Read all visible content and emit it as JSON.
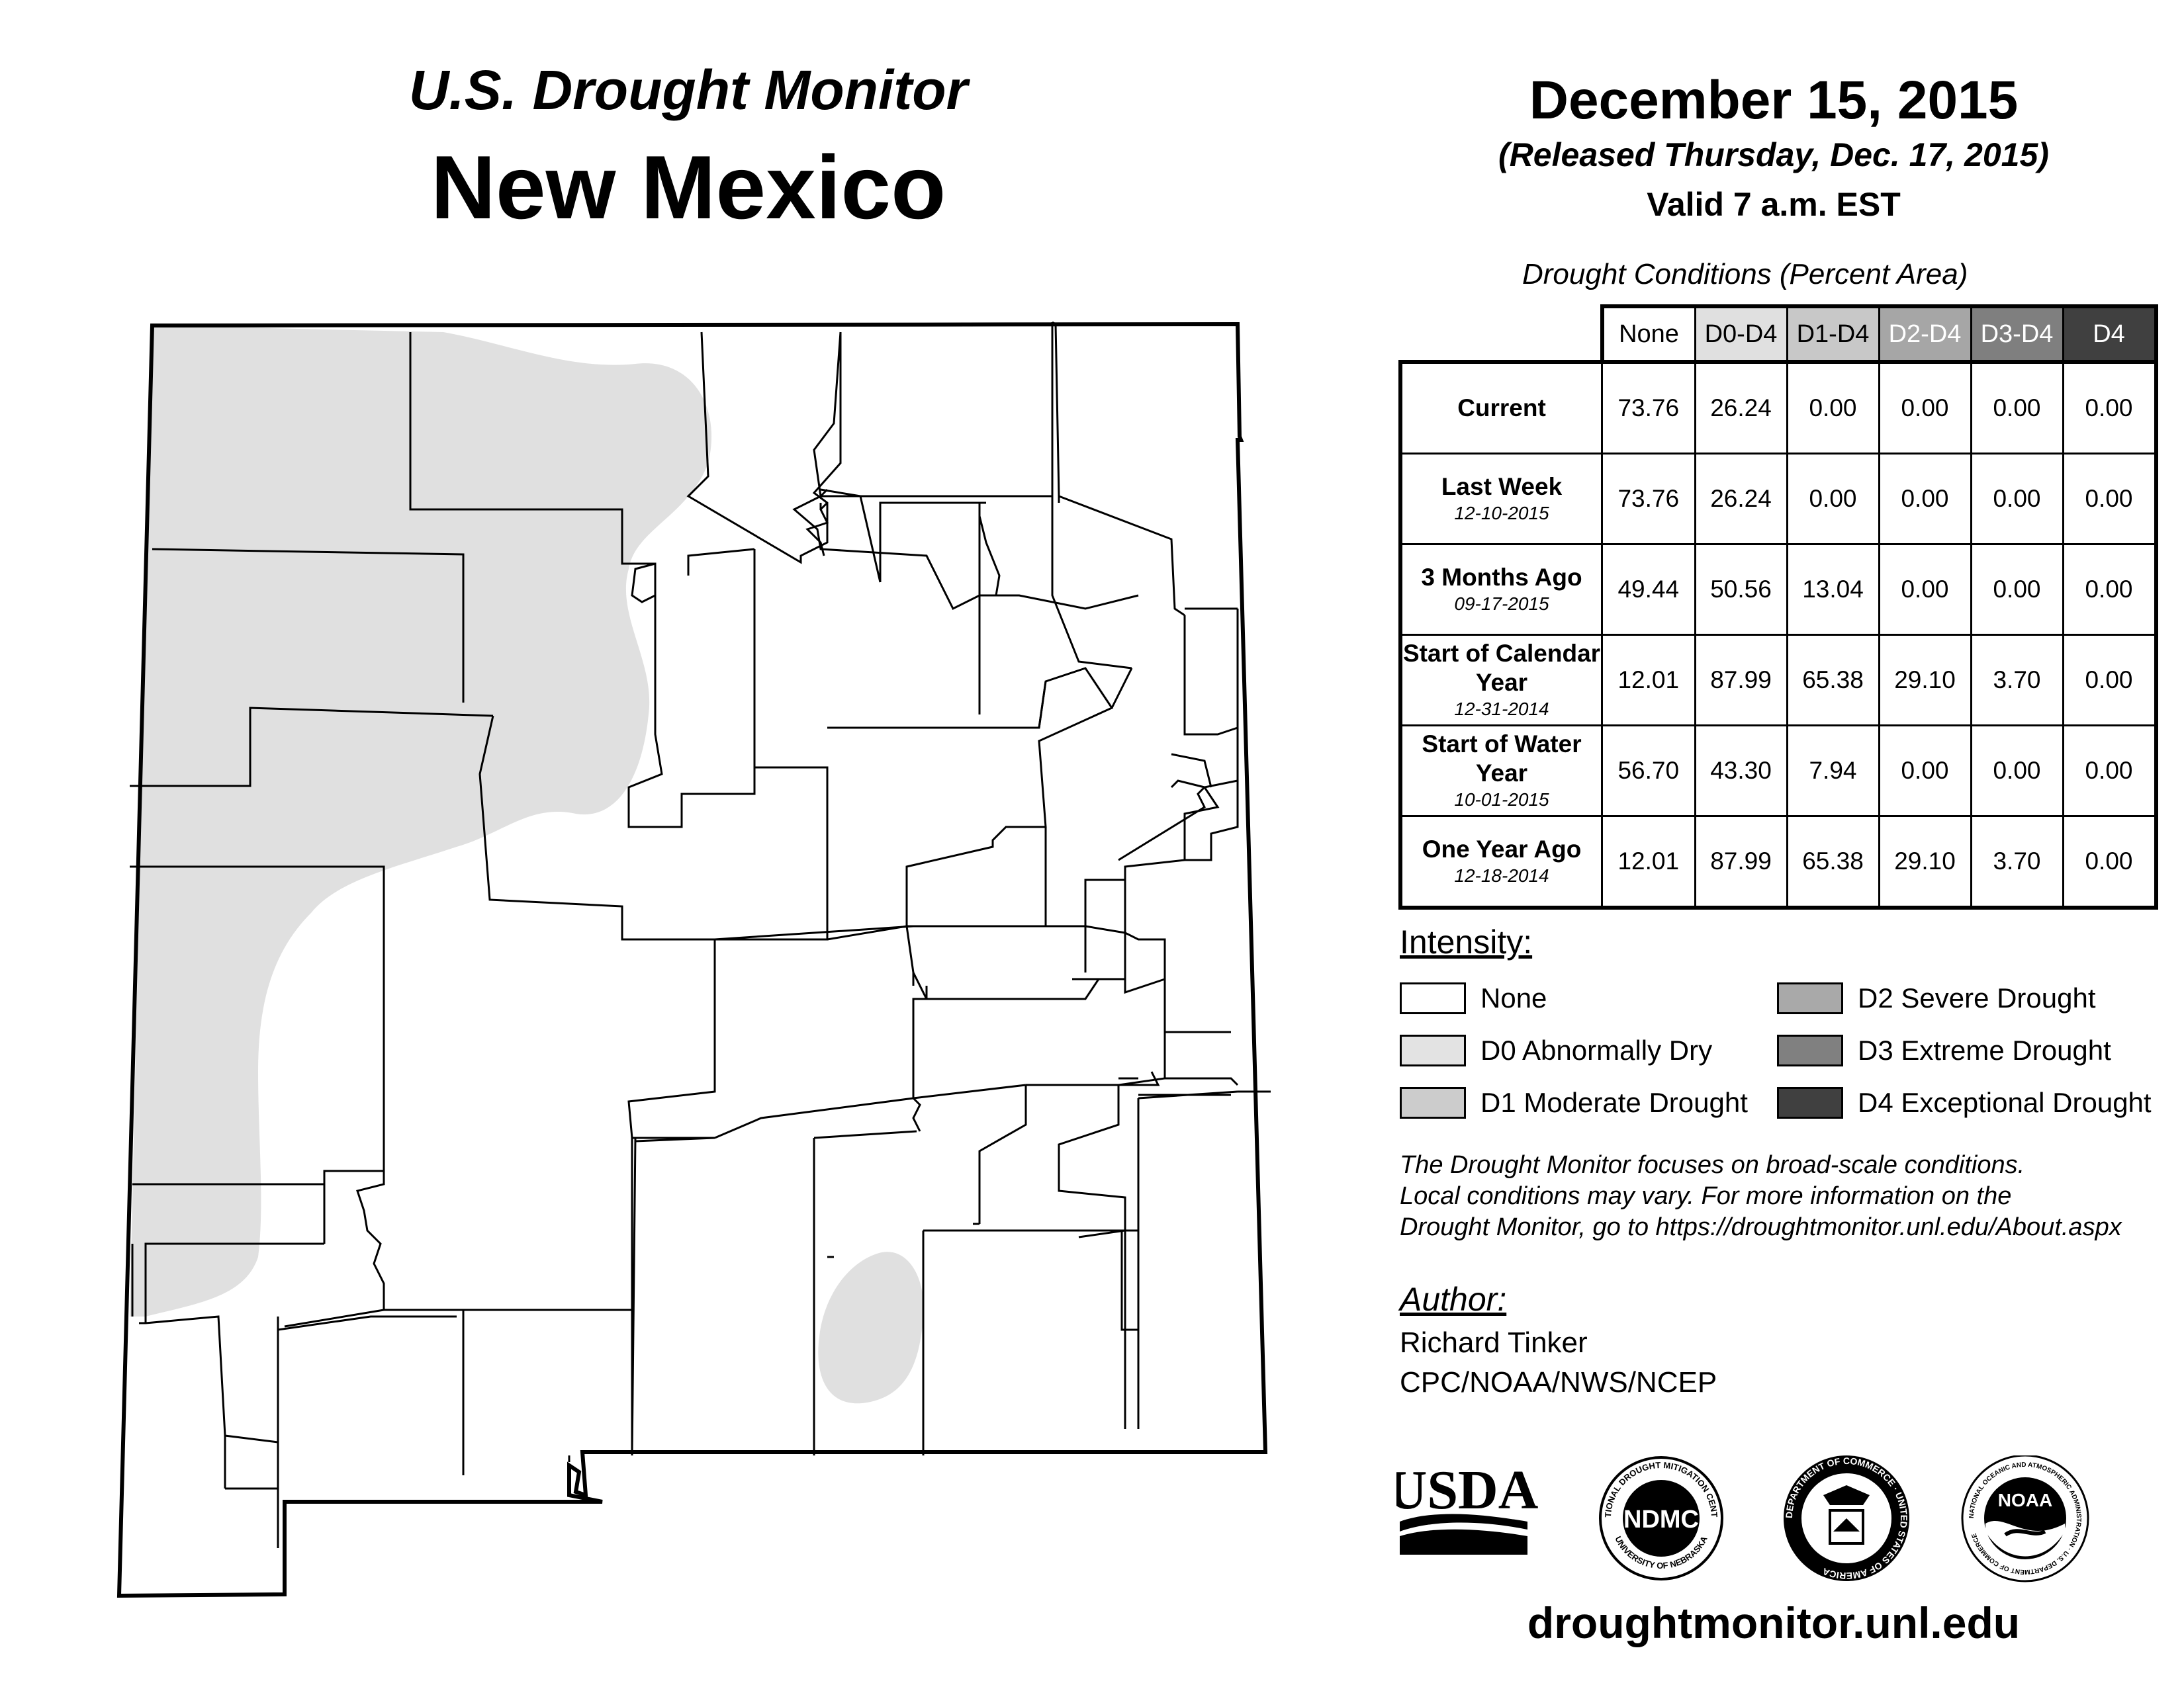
{
  "header": {
    "subtitle": "U.S. Drought Monitor",
    "state": "New Mexico",
    "date": "December 15, 2015",
    "released": "(Released Thursday, Dec. 17, 2015)",
    "valid": "Valid 7 a.m. EST"
  },
  "table": {
    "caption": "Drought Conditions (Percent Area)",
    "columns": [
      "None",
      "D0-D4",
      "D1-D4",
      "D2-D4",
      "D3-D4",
      "D4"
    ],
    "column_colors": [
      "#ffffff",
      "#e0e0e0",
      "#c8c8c8",
      "#a6a6a6",
      "#7f7f7f",
      "#404040"
    ],
    "rows": [
      {
        "label": "Current",
        "date": "",
        "values": [
          "73.76",
          "26.24",
          "0.00",
          "0.00",
          "0.00",
          "0.00"
        ]
      },
      {
        "label": "Last Week",
        "date": "12-10-2015",
        "values": [
          "73.76",
          "26.24",
          "0.00",
          "0.00",
          "0.00",
          "0.00"
        ]
      },
      {
        "label": "3 Months Ago",
        "date": "09-17-2015",
        "values": [
          "49.44",
          "50.56",
          "13.04",
          "0.00",
          "0.00",
          "0.00"
        ]
      },
      {
        "label": "Start of Calendar Year",
        "date": "12-31-2014",
        "values": [
          "12.01",
          "87.99",
          "65.38",
          "29.10",
          "3.70",
          "0.00"
        ]
      },
      {
        "label": "Start of Water Year",
        "date": "10-01-2015",
        "values": [
          "56.70",
          "43.30",
          "7.94",
          "0.00",
          "0.00",
          "0.00"
        ]
      },
      {
        "label": "One Year Ago",
        "date": "12-18-2014",
        "values": [
          "12.01",
          "87.99",
          "65.38",
          "29.10",
          "3.70",
          "0.00"
        ]
      }
    ]
  },
  "legend": {
    "title": "Intensity:",
    "items": [
      {
        "label": "None",
        "color": "#ffffff"
      },
      {
        "label": "D0 Abnormally Dry",
        "color": "#e3e3e3"
      },
      {
        "label": "D1 Moderate Drought",
        "color": "#cccccc"
      },
      {
        "label": "D2 Severe Drought",
        "color": "#a9a9a9"
      },
      {
        "label": "D3 Extreme Drought",
        "color": "#808080"
      },
      {
        "label": "D4 Exceptional Drought",
        "color": "#404040"
      }
    ]
  },
  "note": {
    "line1": "The Drought Monitor focuses on broad-scale conditions.",
    "line2": "Local conditions may vary. For more information on the",
    "line3": "Drought Monitor, go to https://droughtmonitor.unl.edu/About.aspx"
  },
  "author": {
    "title": "Author:",
    "name": "Richard Tinker",
    "org": "CPC/NOAA/NWS/NCEP"
  },
  "logos": {
    "usda": "USDA",
    "ndmc": "NDMC",
    "ndmc_ring_top": "NATIONAL DROUGHT MITIGATION CENTER",
    "ndmc_ring_bottom": "UNIVERSITY OF NEBRASKA",
    "commerce_ring": "DEPARTMENT OF COMMERCE · UNITED STATES OF AMERICA",
    "noaa": "NOAA",
    "noaa_ring": "NATIONAL OCEANIC AND ATMOSPHERIC ADMINISTRATION · U.S. DEPARTMENT OF COMMERCE"
  },
  "map": {
    "d0_color": "#e0e0e0",
    "border_color": "#000000"
  },
  "footer": {
    "url": "droughtmonitor.unl.edu"
  }
}
